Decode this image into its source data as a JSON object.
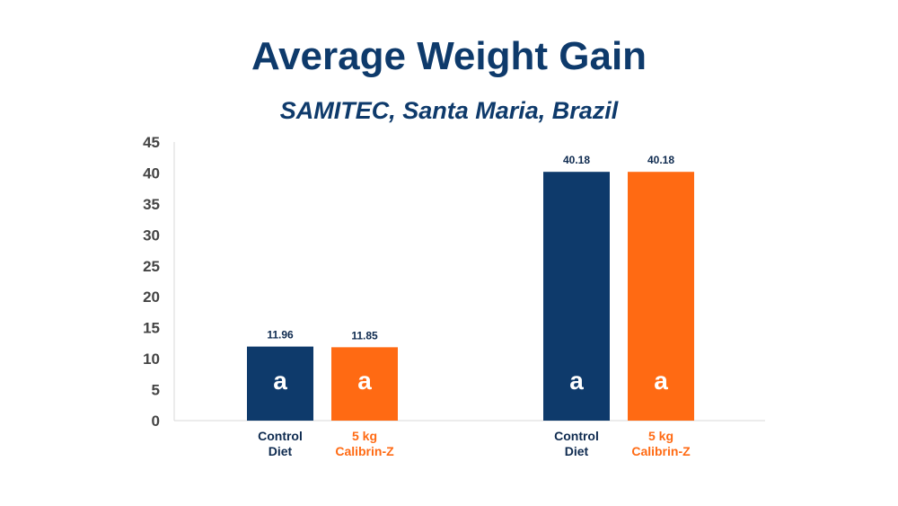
{
  "chart_data": {
    "type": "bar",
    "title": "Average Weight Gain",
    "subtitle": "SAMITEC, Santa Maria, Brazil",
    "xlabel": "",
    "ylabel": "",
    "ylim": [
      0,
      45
    ],
    "yticks": [
      0,
      5,
      10,
      15,
      20,
      25,
      30,
      35,
      40,
      45
    ],
    "grid": false,
    "groups": [
      {
        "bars": [
          {
            "label_lines": [
              "Control",
              "Diet"
            ],
            "value": 11.96,
            "value_label": "11.96",
            "letter": "a",
            "color": "#0e3a6b",
            "label_color": "#0e2a4f"
          },
          {
            "label_lines": [
              "5 kg",
              "Calibrin-Z"
            ],
            "value": 11.85,
            "value_label": "11.85",
            "letter": "a",
            "color": "#ff6a13",
            "label_color": "#ff6a13"
          }
        ]
      },
      {
        "bars": [
          {
            "label_lines": [
              "Control",
              "Diet"
            ],
            "value": 40.18,
            "value_label": "40.18",
            "letter": "a",
            "color": "#0e3a6b",
            "label_color": "#0e2a4f"
          },
          {
            "label_lines": [
              "5 kg",
              "Calibrin-Z"
            ],
            "value": 40.18,
            "value_label": "40.18",
            "letter": "a",
            "color": "#ff6a13",
            "label_color": "#ff6a13"
          }
        ]
      }
    ]
  }
}
